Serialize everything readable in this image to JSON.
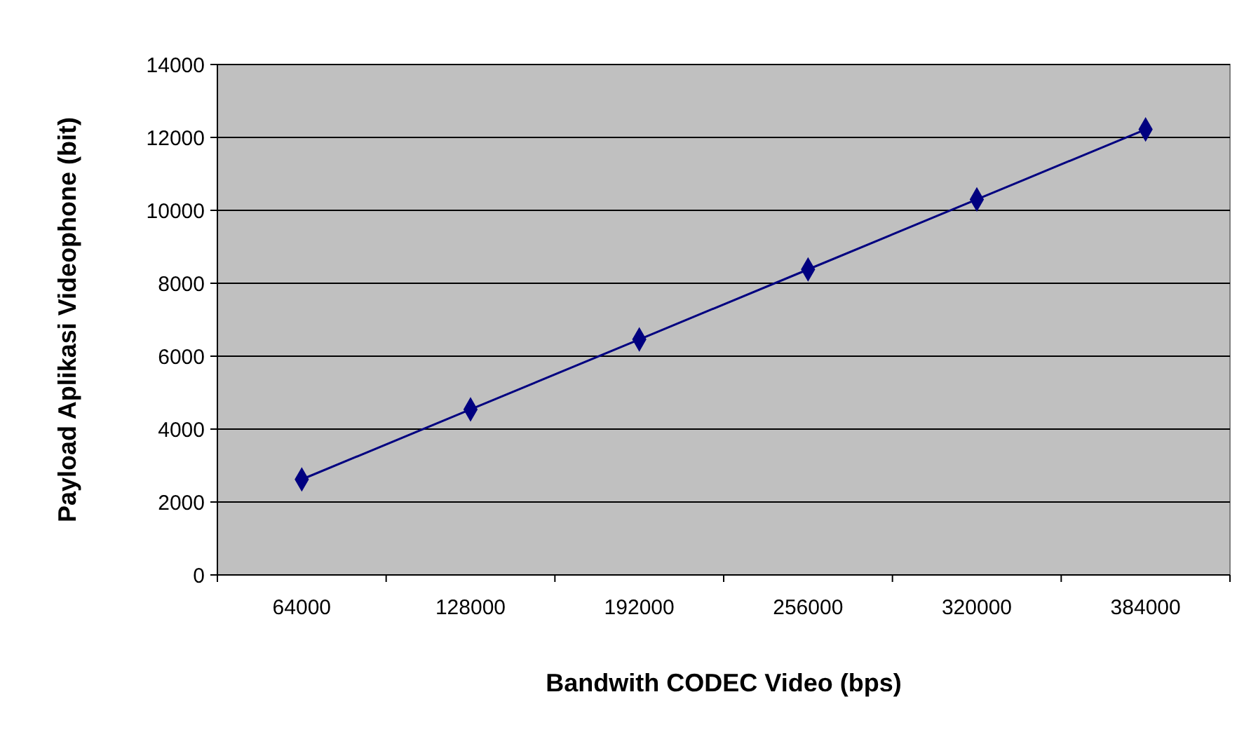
{
  "chart_data": {
    "type": "line",
    "xlabel": "Bandwith CODEC Video (bps)",
    "ylabel": "Payload Aplikasi Videophone (bit)",
    "categories": [
      "64000",
      "128000",
      "192000",
      "256000",
      "320000",
      "384000"
    ],
    "series": [
      {
        "color": "#000080",
        "values": [
          2620,
          4540,
          6460,
          8380,
          10300,
          12220
        ]
      }
    ],
    "ylim": [
      0,
      14000
    ],
    "yticks": [
      0,
      2000,
      4000,
      6000,
      8000,
      10000,
      12000,
      14000
    ],
    "grid": "y",
    "marker": "diamond",
    "line_style": "solid"
  }
}
